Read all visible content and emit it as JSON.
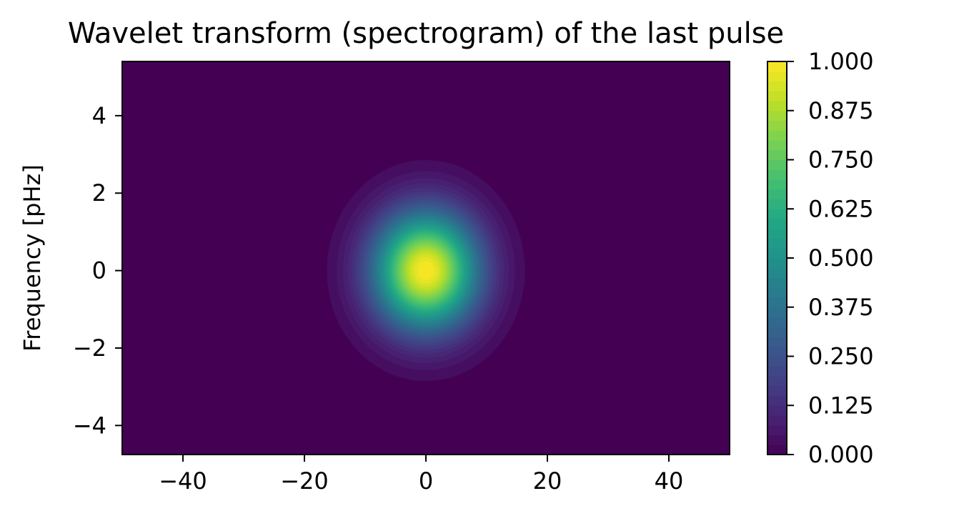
{
  "chart_data": {
    "type": "heatmap",
    "title": "Wavelet transform (spectrogram) of the last pulse",
    "xlabel": "",
    "ylabel": "Frequency [pHz]",
    "xlim": [
      -50,
      50
    ],
    "ylim": [
      -4.75,
      5.4
    ],
    "x_ticks": [
      -40,
      -20,
      0,
      20,
      40
    ],
    "x_tick_labels": [
      "−40",
      "−20",
      "0",
      "20",
      "40"
    ],
    "y_ticks": [
      -4,
      -2,
      0,
      2,
      4
    ],
    "y_tick_labels": [
      "−4",
      "−2",
      "0",
      "2",
      "4"
    ],
    "peak": {
      "x": 0,
      "y": 0,
      "value": 1.0
    },
    "sigma_x": 6,
    "sigma_y": 1.05,
    "colormap": "viridis",
    "colorbar": {
      "range": [
        0,
        1
      ],
      "ticks": [
        0,
        0.125,
        0.25,
        0.375,
        0.5,
        0.625,
        0.75,
        0.875,
        1.0
      ],
      "tick_labels": [
        "0.000",
        "0.125",
        "0.250",
        "0.375",
        "0.500",
        "0.625",
        "0.750",
        "0.875",
        "1.000"
      ],
      "levels": 40
    },
    "grid": false,
    "legend": "none",
    "colors": {
      "background": "#440154",
      "low": "#440154",
      "mid": "#21918c",
      "high": "#fde725"
    }
  }
}
